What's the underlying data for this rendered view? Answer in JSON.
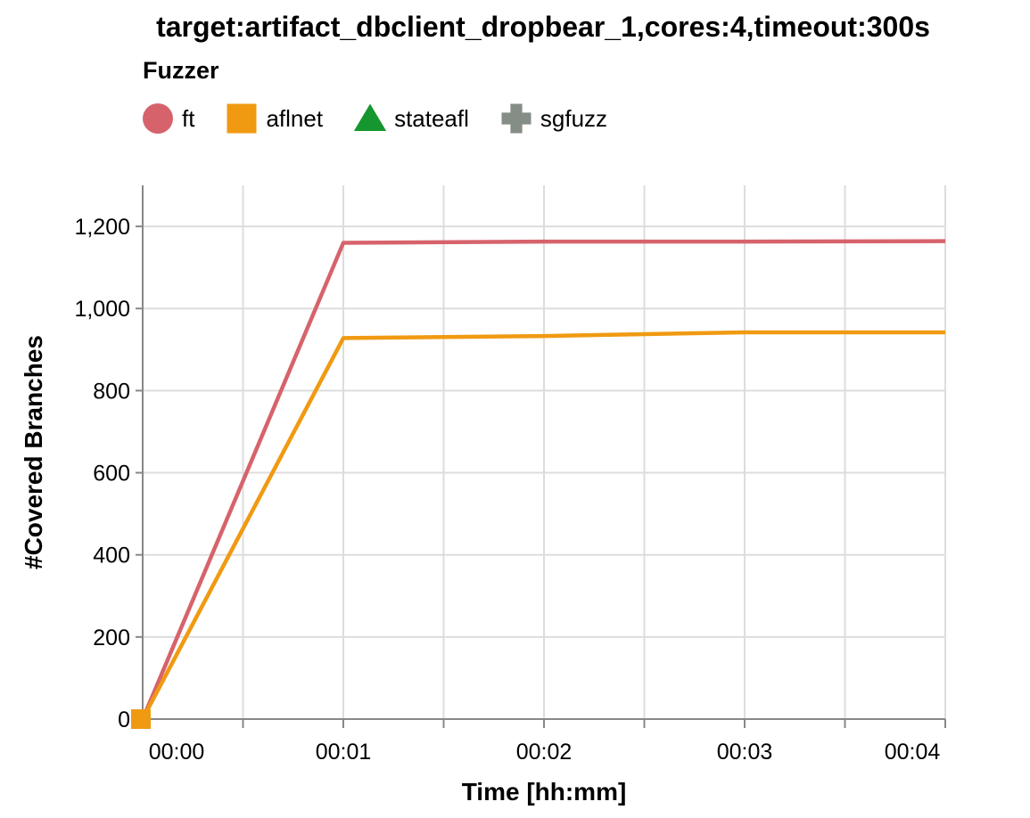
{
  "chart_data": {
    "type": "line",
    "title": "target:artifact_dbclient_dropbear_1,cores:4,timeout:300s",
    "xlabel": "Time [hh:mm]",
    "ylabel": "#Covered Branches",
    "legend_title": "Fuzzer",
    "legend_position": "top",
    "grid": true,
    "xlim": [
      0,
      4
    ],
    "ylim": [
      0,
      1300
    ],
    "x_ticks": [
      {
        "value": 0,
        "label": "00:00"
      },
      {
        "value": 1,
        "label": "00:01"
      },
      {
        "value": 2,
        "label": "00:02"
      },
      {
        "value": 3,
        "label": "00:03"
      },
      {
        "value": 4,
        "label": "00:04"
      }
    ],
    "x_minor_ticks": [
      0.5,
      1.5,
      2.5,
      3.5
    ],
    "y_ticks": [
      {
        "value": 0,
        "label": "0"
      },
      {
        "value": 200,
        "label": "200"
      },
      {
        "value": 400,
        "label": "400"
      },
      {
        "value": 600,
        "label": "600"
      },
      {
        "value": 800,
        "label": "800"
      },
      {
        "value": 1000,
        "label": "1,000"
      },
      {
        "value": 1200,
        "label": "1,200"
      }
    ],
    "series": [
      {
        "name": "ft",
        "color": "#d6636c",
        "symbol": "circle",
        "x": [
          0,
          1,
          2,
          3,
          4
        ],
        "values": [
          0,
          1160,
          1163,
          1163,
          1164
        ]
      },
      {
        "name": "aflnet",
        "color": "#f09a12",
        "symbol": "square",
        "x": [
          0,
          1,
          2,
          3,
          4
        ],
        "values": [
          0,
          928,
          933,
          942,
          942
        ]
      },
      {
        "name": "stateafl",
        "color": "#16962e",
        "symbol": "triangle",
        "x": [],
        "values": []
      },
      {
        "name": "sgfuzz",
        "color": "#858d87",
        "symbol": "cross",
        "x": [],
        "values": []
      }
    ]
  }
}
